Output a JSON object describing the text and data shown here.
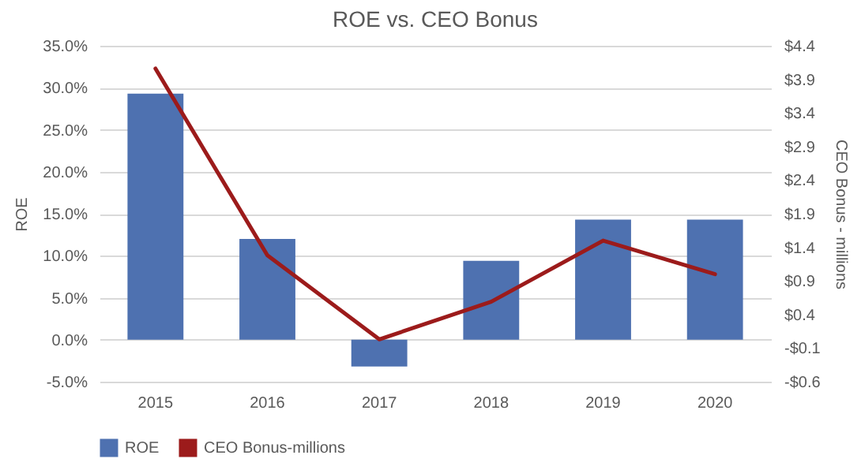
{
  "chart_data": {
    "type": "bar",
    "title": "ROE vs. CEO Bonus",
    "ylabel": "ROE",
    "y2label": "CEO Bonus - millions",
    "categories": [
      "2015",
      "2016",
      "2017",
      "2018",
      "2019",
      "2020"
    ],
    "series": [
      {
        "name": "ROE",
        "color": "#4e71b0",
        "values": [
          29.3,
          12.0,
          -3.2,
          9.4,
          14.3,
          14.3
        ]
      },
      {
        "name": "CEO Bonus-millions",
        "type": "line",
        "axis": "y2",
        "color": "#9c1b1b",
        "values": [
          4.06,
          1.28,
          0.03,
          0.59,
          1.5,
          1.0
        ]
      }
    ],
    "ylim": [
      -5,
      35
    ],
    "yticks": [
      {
        "value": -5,
        "label": "-5.0%"
      },
      {
        "value": 0,
        "label": "0.0%"
      },
      {
        "value": 5,
        "label": "5.0%"
      },
      {
        "value": 10,
        "label": "10.0%"
      },
      {
        "value": 15,
        "label": "15.0%"
      },
      {
        "value": 20,
        "label": "20.0%"
      },
      {
        "value": 25,
        "label": "25.0%"
      },
      {
        "value": 30,
        "label": "30.0%"
      },
      {
        "value": 35,
        "label": "35.0%"
      }
    ],
    "y2lim": [
      -0.6,
      4.4
    ],
    "y2ticks": [
      {
        "value": -0.6,
        "label": "-$0.6"
      },
      {
        "value": -0.1,
        "label": "-$0.1"
      },
      {
        "value": 0.4,
        "label": "$0.4"
      },
      {
        "value": 0.9,
        "label": "$0.9"
      },
      {
        "value": 1.4,
        "label": "$1.4"
      },
      {
        "value": 1.9,
        "label": "$1.9"
      },
      {
        "value": 2.4,
        "label": "$2.4"
      },
      {
        "value": 2.9,
        "label": "$2.9"
      },
      {
        "value": 3.4,
        "label": "$3.4"
      },
      {
        "value": 3.9,
        "label": "$3.9"
      },
      {
        "value": 4.4,
        "label": "$4.4"
      }
    ],
    "grid": "y",
    "legend": "bottom"
  }
}
